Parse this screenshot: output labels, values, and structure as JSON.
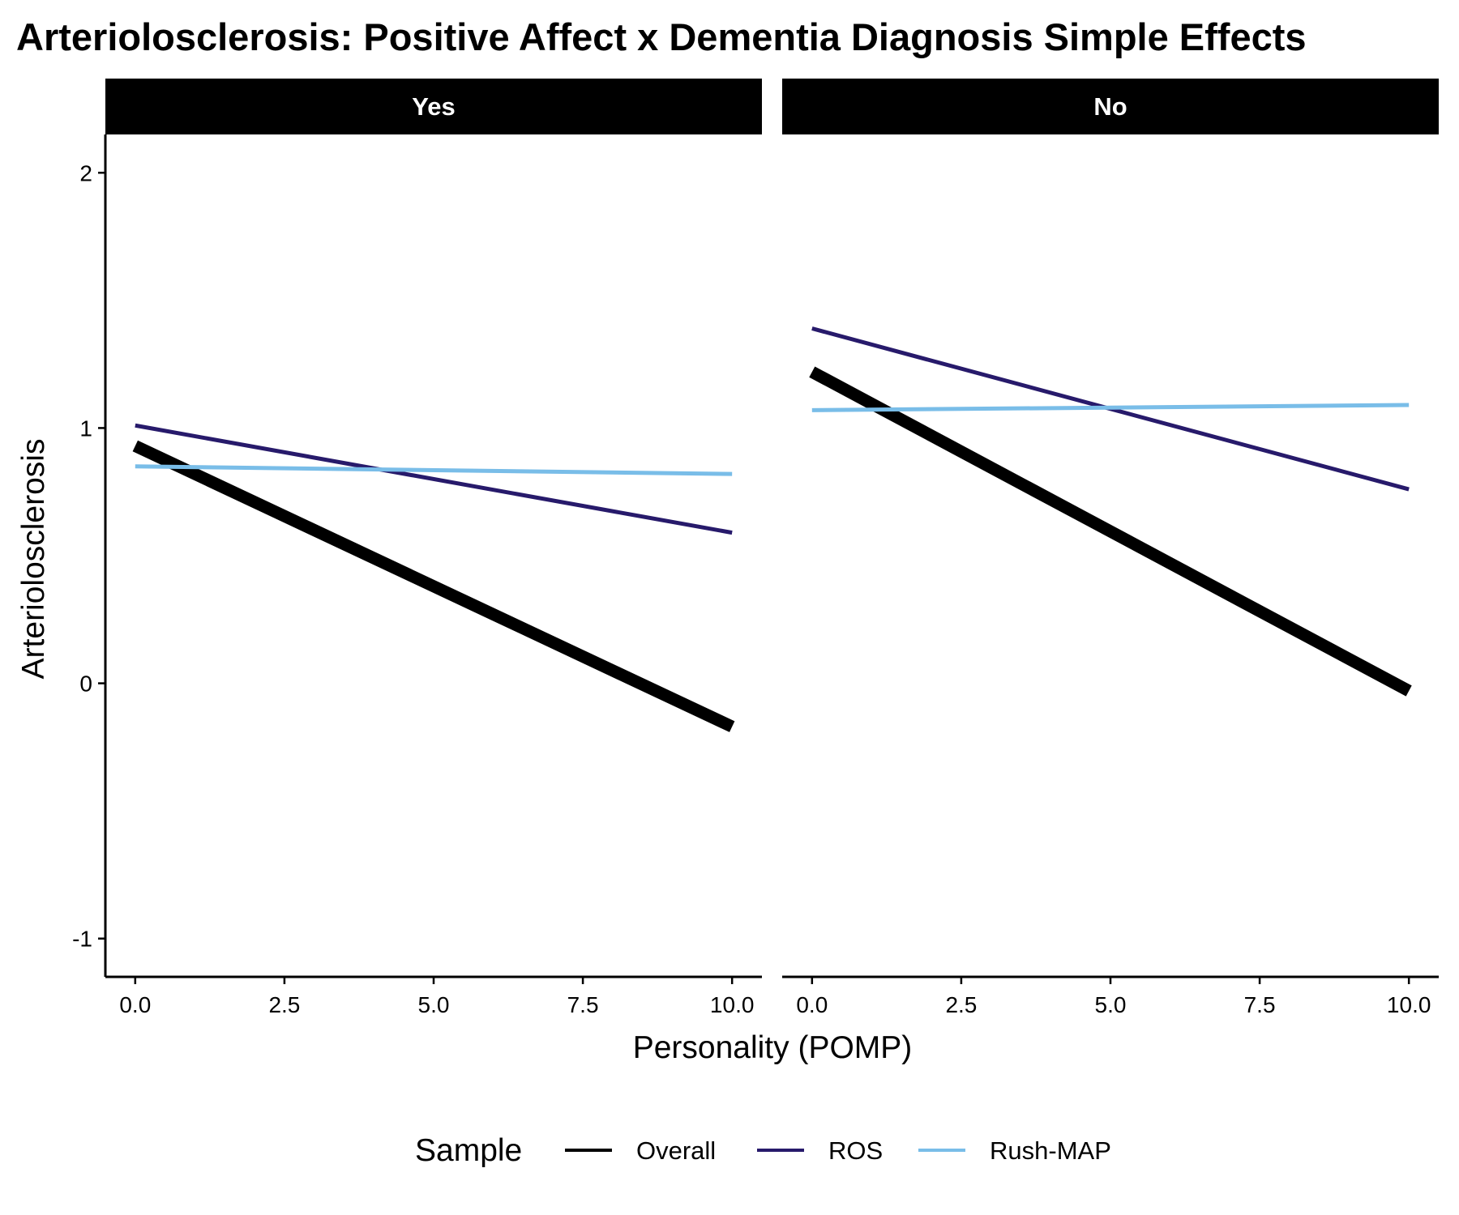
{
  "chart_data": {
    "type": "line",
    "title": "Arteriolosclerosis: Positive Affect x Dementia Diagnosis Simple Effects",
    "xlabel": "Personality (POMP)",
    "ylabel": "Arteriolosclerosis",
    "xlim": [
      -0.5,
      10.5
    ],
    "ylim": [
      -1.15,
      2.15
    ],
    "x_ticks": [
      0,
      2.5,
      5,
      7.5,
      10
    ],
    "x_tick_labels": [
      "0.0",
      "2.5",
      "5.0",
      "7.5",
      "10.0"
    ],
    "y_ticks": [
      -1,
      0,
      1,
      2
    ],
    "y_tick_labels": [
      "-1",
      "0",
      "1",
      "2"
    ],
    "grid": false,
    "legend": {
      "title": "Sample",
      "position": "bottom",
      "entries": [
        {
          "name": "Overall",
          "color": "#000000"
        },
        {
          "name": "ROS",
          "color": "#271a6b"
        },
        {
          "name": "Rush-MAP",
          "color": "#79bde8"
        }
      ]
    },
    "panels": [
      {
        "label": "Yes",
        "series": [
          {
            "name": "Overall",
            "color": "#000000",
            "x": [
              0,
              10
            ],
            "y": [
              0.93,
              -0.17
            ]
          },
          {
            "name": "ROS",
            "color": "#271a6b",
            "x": [
              0,
              10
            ],
            "y": [
              1.01,
              0.59
            ]
          },
          {
            "name": "Rush-MAP",
            "color": "#79bde8",
            "x": [
              0,
              10
            ],
            "y": [
              0.85,
              0.82
            ]
          }
        ]
      },
      {
        "label": "No",
        "series": [
          {
            "name": "Overall",
            "color": "#000000",
            "x": [
              0,
              10
            ],
            "y": [
              1.22,
              -0.03
            ]
          },
          {
            "name": "ROS",
            "color": "#271a6b",
            "x": [
              0,
              10
            ],
            "y": [
              1.39,
              0.76
            ]
          },
          {
            "name": "Rush-MAP",
            "color": "#79bde8",
            "x": [
              0,
              10
            ],
            "y": [
              1.07,
              1.09
            ]
          }
        ]
      }
    ]
  }
}
